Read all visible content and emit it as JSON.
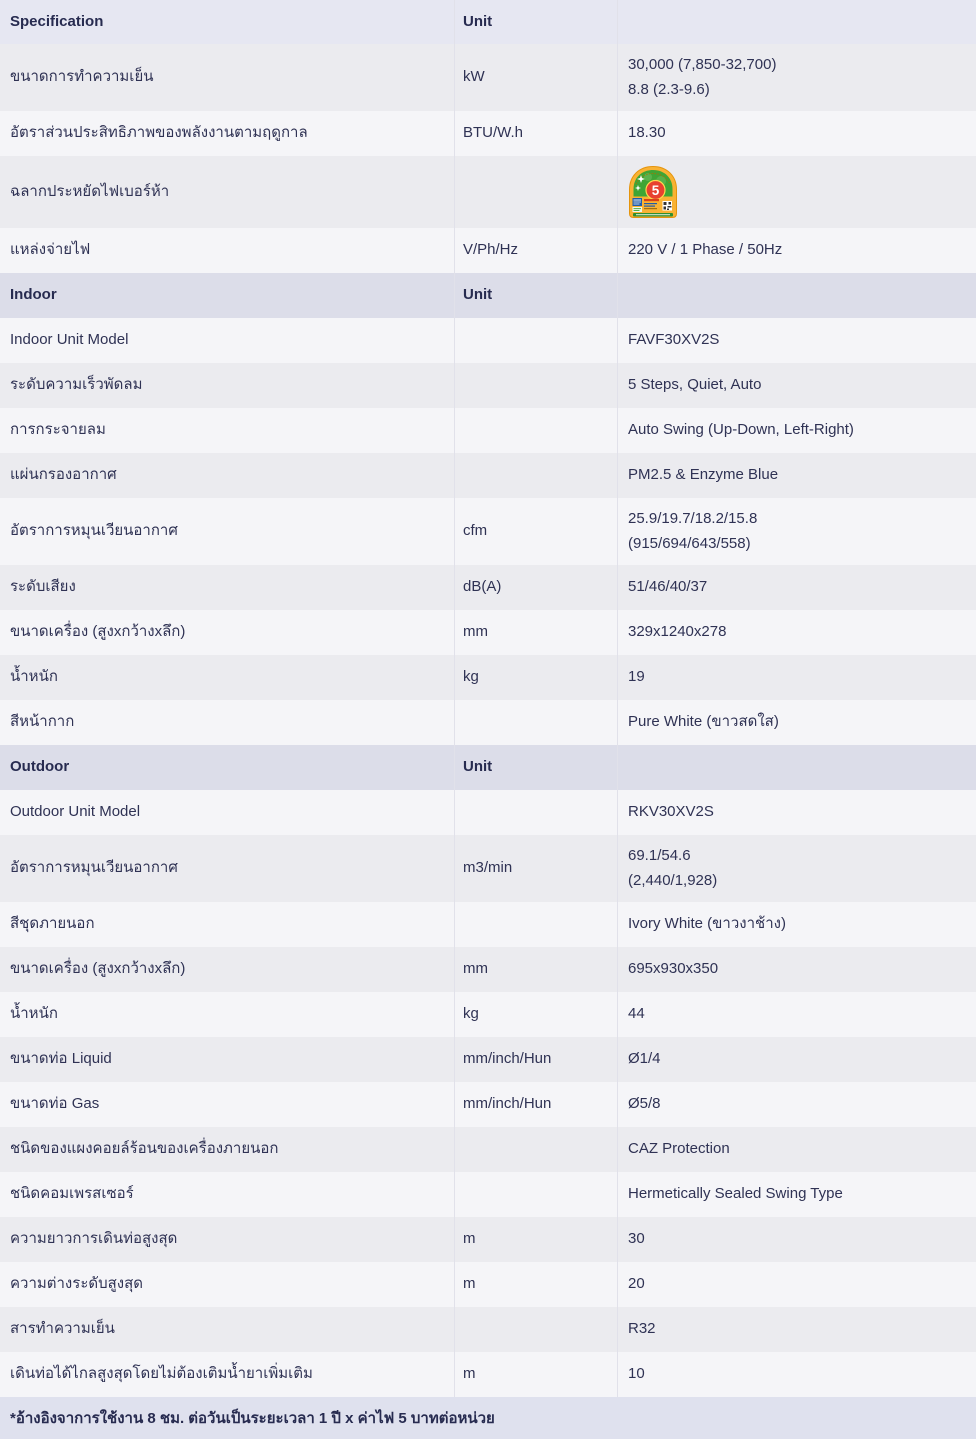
{
  "colors": {
    "text": "#2f3254",
    "header_bg": "#e6e7f2",
    "section_header_bg": "#dcdde9",
    "row_gray_bg": "#ebebef",
    "row_white_bg": "#f5f5f8",
    "footer_bg": "#dfe1ee",
    "divider": "#e1e1ea",
    "energy_label_green": "#3fa535",
    "energy_label_red": "#e8412f",
    "energy_label_yellow": "#f9b233"
  },
  "table": {
    "main_header": {
      "specification": "Specification",
      "unit": "Unit"
    },
    "sections": [
      {
        "rows": [
          {
            "label": "ขนาดการทำความเย็น",
            "unit": "kW",
            "values": [
              "30,000 (7,850-32,700)",
              "8.8 (2.3-9.6)"
            ]
          },
          {
            "label": "อัตราส่วนประสิทธิภาพของพลังงานตามฤดูกาล",
            "unit": "BTU/W.h",
            "values": [
              "18.30"
            ]
          },
          {
            "label": "ฉลากประหยัดไฟเบอร์ห้า",
            "unit": "",
            "values": [],
            "icon": "energy-label-no5-icon"
          },
          {
            "label": "แหล่งจ่ายไฟ",
            "unit": "V/Ph/Hz",
            "values": [
              "220 V / 1 Phase / 50Hz"
            ]
          }
        ]
      },
      {
        "title": "Indoor",
        "unit_label": "Unit",
        "rows": [
          {
            "label": "Indoor Unit Model",
            "unit": "",
            "values": [
              "FAVF30XV2S"
            ]
          },
          {
            "label": "ระดับความเร็วพัดลม",
            "unit": "",
            "values": [
              "5 Steps, Quiet, Auto"
            ]
          },
          {
            "label": "การกระจายลม",
            "unit": "",
            "values": [
              "Auto Swing (Up-Down, Left-Right)"
            ]
          },
          {
            "label": "แผ่นกรองอากาศ",
            "unit": "",
            "values": [
              "PM2.5 & Enzyme Blue"
            ]
          },
          {
            "label": "อัตราการหมุนเวียนอากาศ",
            "unit": "cfm",
            "values": [
              "25.9/19.7/18.2/15.8",
              "(915/694/643/558)"
            ]
          },
          {
            "label": "ระดับเสียง",
            "unit": "dB(A)",
            "values": [
              "51/46/40/37"
            ]
          },
          {
            "label": "ขนาดเครื่อง (สูงxกว้างxลึก)",
            "unit": "mm",
            "values": [
              "329x1240x278"
            ]
          },
          {
            "label": "น้ำหนัก",
            "unit": "kg",
            "values": [
              "19"
            ]
          },
          {
            "label": "สีหน้ากาก",
            "unit": "",
            "values": [
              "Pure White (ขาวสดใส)"
            ]
          }
        ]
      },
      {
        "title": "Outdoor",
        "unit_label": "Unit",
        "rows": [
          {
            "label": "Outdoor Unit Model",
            "unit": "",
            "values": [
              "RKV30XV2S"
            ]
          },
          {
            "label": "อัตราการหมุนเวียนอากาศ",
            "unit": "m3/min",
            "values": [
              "69.1/54.6",
              "(2,440/1,928)"
            ]
          },
          {
            "label": "สีชุดภายนอก",
            "unit": "",
            "values": [
              "Ivory White (ขาวงาช้าง)"
            ]
          },
          {
            "label": "ขนาดเครื่อง (สูงxกว้างxลึก)",
            "unit": "mm",
            "values": [
              "695x930x350"
            ]
          },
          {
            "label": "น้ำหนัก",
            "unit": "kg",
            "values": [
              "44"
            ]
          },
          {
            "label": "ขนาดท่อ Liquid",
            "unit": "mm/inch/Hun",
            "values": [
              "Ø1/4"
            ]
          },
          {
            "label": "ขนาดท่อ Gas",
            "unit": "mm/inch/Hun",
            "values": [
              "Ø5/8"
            ]
          },
          {
            "label": "ชนิดของแผงคอยล์ร้อนของเครื่องภายนอก",
            "unit": "",
            "values": [
              "CAZ Protection"
            ]
          },
          {
            "label": "ชนิดคอมเพรสเซอร์",
            "unit": "",
            "values": [
              "Hermetically Sealed Swing Type"
            ]
          },
          {
            "label": "ความยาวการเดินท่อสูงสุด",
            "unit": "m",
            "values": [
              "30"
            ]
          },
          {
            "label": "ความต่างระดับสูงสุด",
            "unit": "m",
            "values": [
              "20"
            ]
          },
          {
            "label": "สารทำความเย็น",
            "unit": "",
            "values": [
              "R32"
            ]
          },
          {
            "label": "เดินท่อได้ไกลสูงสุดโดยไม่ต้องเติมน้ำยาเพิ่มเติม",
            "unit": "m",
            "values": [
              "10"
            ]
          }
        ]
      }
    ],
    "footnote": "*อ้างอิงจาการใช้งาน 8 ชม. ต่อวันเป็นระยะเวลา 1 ปี x ค่าไฟ 5 บาทต่อหน่วย"
  },
  "energy_label": {
    "grade": "5"
  }
}
